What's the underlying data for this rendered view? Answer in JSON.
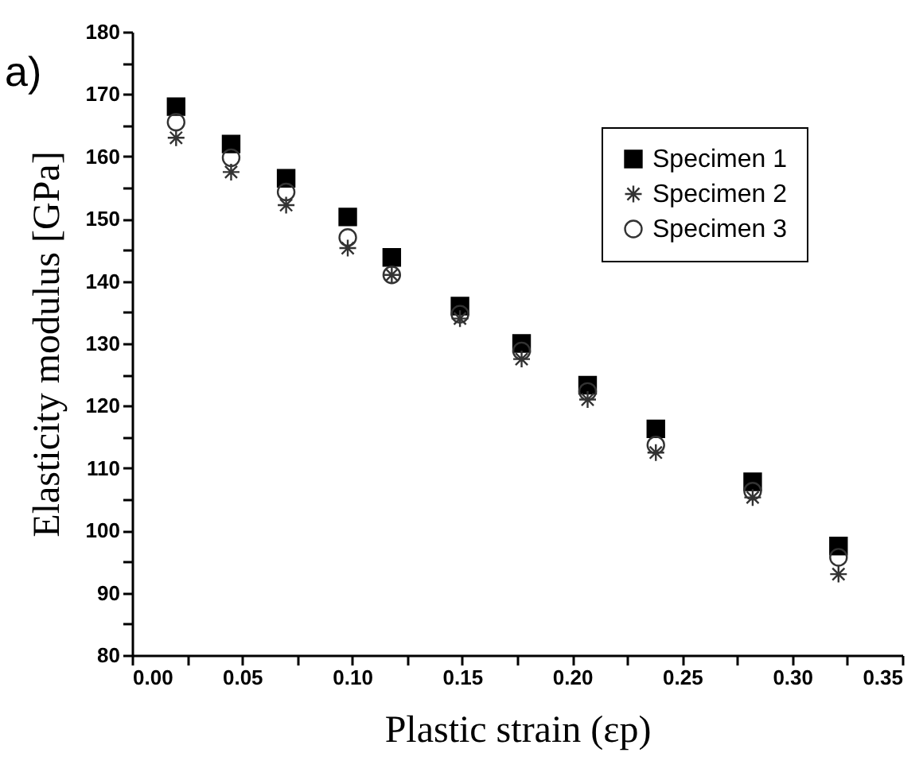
{
  "chart_data": {
    "type": "scatter",
    "xlabel": "Plastic strain (εp)",
    "ylabel": "Elasticity modulus  [GPa]",
    "annotations": [
      "a)"
    ],
    "x": [
      0.02,
      0.045,
      0.07,
      0.098,
      0.118,
      0.149,
      0.177,
      0.207,
      0.238,
      0.282,
      0.321
    ],
    "series": [
      {
        "name": "Specimen 1",
        "color": "#000000",
        "marker": "square",
        "values": [
          168,
          162,
          156.5,
          150.3,
          143.8,
          136,
          130,
          123.3,
          116.3,
          107.8,
          97.5
        ]
      },
      {
        "name": "Specimen 2",
        "color": "#333333",
        "marker": "cross",
        "values": [
          163,
          157.5,
          152.2,
          145.3,
          141,
          134,
          127.5,
          121,
          112.5,
          105.3,
          93
        ]
      },
      {
        "name": "Specimen 3",
        "color": "#333333",
        "marker": "circle",
        "values": [
          165.5,
          159.8,
          154.3,
          147,
          141,
          134.7,
          128.8,
          122.3,
          113.7,
          106.3,
          95.7
        ]
      }
    ],
    "xlim": [
      0,
      0.35
    ],
    "xticks": [
      {
        "value": 0,
        "label": "0.00"
      },
      {
        "value": 0.025,
        "label": null
      },
      {
        "value": 0.05,
        "label": "0.05"
      },
      {
        "value": 0.075,
        "label": null
      },
      {
        "value": 0.1,
        "label": "0.10"
      },
      {
        "value": 0.125,
        "label": null
      },
      {
        "value": 0.15,
        "label": "0.15"
      },
      {
        "value": 0.175,
        "label": null
      },
      {
        "value": 0.2,
        "label": "0.20"
      },
      {
        "value": 0.225,
        "label": null
      },
      {
        "value": 0.25,
        "label": "0.25"
      },
      {
        "value": 0.275,
        "label": null
      },
      {
        "value": 0.3,
        "label": "0.30"
      },
      {
        "value": 0.325,
        "label": null
      },
      {
        "value": 0.35,
        "label": "0.35"
      }
    ],
    "ylim": [
      80,
      180
    ],
    "yticks": [
      80,
      {
        "value": 85,
        "label": null
      },
      90,
      {
        "value": 95,
        "label": null
      },
      100,
      {
        "value": 105,
        "label": null
      },
      110,
      {
        "value": 115,
        "label": null
      },
      120,
      {
        "value": 125,
        "label": null
      },
      130,
      {
        "value": 135,
        "label": null
      },
      140,
      {
        "value": 145,
        "label": null
      },
      150,
      {
        "value": 155,
        "label": null
      },
      160,
      {
        "value": 165,
        "label": null
      },
      170,
      {
        "value": 175,
        "label": null
      },
      180
    ],
    "grid": false,
    "legend": "top right"
  }
}
